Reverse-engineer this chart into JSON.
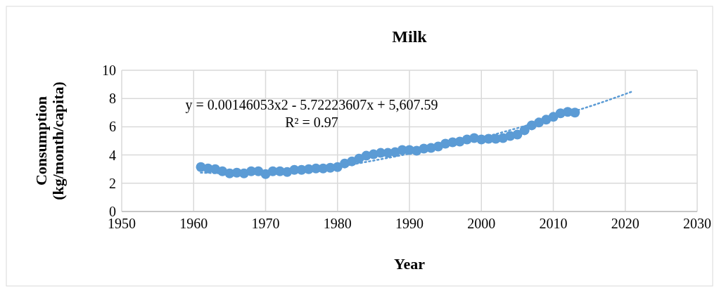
{
  "chart_data": {
    "type": "scatter",
    "title": "Milk",
    "xlabel": "Year",
    "ylabel": "Consumption (kg/month/capita)",
    "xlim": [
      1950,
      2030
    ],
    "xticks": [
      1950,
      1960,
      1970,
      1980,
      1990,
      2000,
      2010,
      2020,
      2030
    ],
    "ylim": [
      0,
      10
    ],
    "yticks": [
      0,
      2,
      4,
      6,
      8,
      10
    ],
    "grid": true,
    "annotations": [
      "y = 0.00146053x2 - 5.72223607x + 5,607.59",
      "R² = 0.97"
    ],
    "series": [
      {
        "color": "#5b9bd5",
        "marker": "circle",
        "x": [
          1961,
          1962,
          1963,
          1964,
          1965,
          1966,
          1967,
          1968,
          1969,
          1970,
          1971,
          1972,
          1973,
          1974,
          1975,
          1976,
          1977,
          1978,
          1979,
          1980,
          1981,
          1982,
          1983,
          1984,
          1985,
          1986,
          1987,
          1988,
          1989,
          1990,
          1991,
          1992,
          1993,
          1994,
          1995,
          1996,
          1997,
          1998,
          1999,
          2000,
          2001,
          2002,
          2003,
          2004,
          2005,
          2006,
          2007,
          2008,
          2009,
          2010,
          2011,
          2012,
          2013
        ],
        "values": [
          3.15,
          3.05,
          3.0,
          2.85,
          2.7,
          2.75,
          2.7,
          2.85,
          2.85,
          2.65,
          2.85,
          2.85,
          2.8,
          2.95,
          2.95,
          3.0,
          3.05,
          3.05,
          3.1,
          3.15,
          3.4,
          3.55,
          3.75,
          3.95,
          4.05,
          4.15,
          4.15,
          4.2,
          4.35,
          4.35,
          4.3,
          4.45,
          4.5,
          4.6,
          4.8,
          4.9,
          4.95,
          5.1,
          5.2,
          5.1,
          5.15,
          5.15,
          5.2,
          5.35,
          5.45,
          5.75,
          6.1,
          6.3,
          6.5,
          6.7,
          6.95,
          7.05,
          7.0
        ]
      },
      {
        "type": "line",
        "color": "#5b9bd5",
        "line_style": "dotted",
        "x": [
          1961,
          1966,
          1971,
          1976,
          1981,
          1986,
          1991,
          1996,
          2001,
          2006,
          2011,
          2016,
          2021
        ],
        "values": [
          2.75,
          2.7,
          2.8,
          2.95,
          3.25,
          3.7,
          4.2,
          4.75,
          5.35,
          6.05,
          6.8,
          7.6,
          8.5
        ]
      }
    ]
  }
}
